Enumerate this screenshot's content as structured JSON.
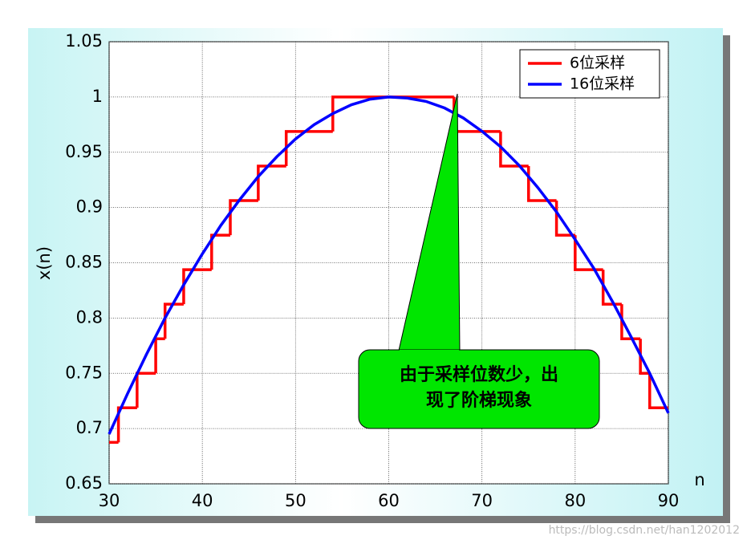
{
  "chart_data": {
    "type": "line",
    "xlabel": "n",
    "ylabel": "x(n)",
    "xlim": [
      30,
      90
    ],
    "xticks": [
      30,
      40,
      50,
      60,
      70,
      80,
      90
    ],
    "ylim": [
      0.65,
      1.05
    ],
    "yticks": [
      0.65,
      0.7,
      0.75,
      0.8,
      0.85,
      0.9,
      0.95,
      1,
      1.05
    ],
    "grid": true,
    "legend": "upper right",
    "series": [
      {
        "name": "6位采样",
        "color": "#ff0000",
        "drawstyle": "steps",
        "x": [
          30,
          31,
          33,
          35,
          36,
          38,
          41,
          43,
          46,
          49,
          54,
          67,
          72,
          75,
          78,
          80,
          83,
          85,
          87,
          88,
          90
        ],
        "values": [
          0.6875,
          0.71875,
          0.75,
          0.78125,
          0.8125,
          0.84375,
          0.875,
          0.90625,
          0.9375,
          0.96875,
          1,
          0.96875,
          0.9375,
          0.90625,
          0.875,
          0.84375,
          0.8125,
          0.78125,
          0.75,
          0.71875,
          0.71875
        ]
      },
      {
        "name": "16位采样",
        "color": "#0000ff",
        "x": [
          30,
          32,
          34,
          36,
          38,
          40,
          42,
          44,
          46,
          48,
          50,
          52,
          54,
          56,
          58,
          60,
          62,
          64,
          66,
          68,
          70,
          72,
          74,
          76,
          78,
          80,
          82,
          84,
          86,
          88,
          90
        ],
        "values": [
          0.695,
          0.732,
          0.767,
          0.8,
          0.83,
          0.858,
          0.884,
          0.907,
          0.928,
          0.946,
          0.962,
          0.975,
          0.985,
          0.993,
          0.998,
          1.0,
          0.999,
          0.996,
          0.99,
          0.981,
          0.969,
          0.955,
          0.938,
          0.918,
          0.896,
          0.871,
          0.845,
          0.815,
          0.783,
          0.75,
          0.714
        ]
      }
    ],
    "annotation": [
      "由于采样位数少，出",
      "现了阶梯现象"
    ],
    "watermark": "https://blog.csdn.net/han1202012"
  }
}
